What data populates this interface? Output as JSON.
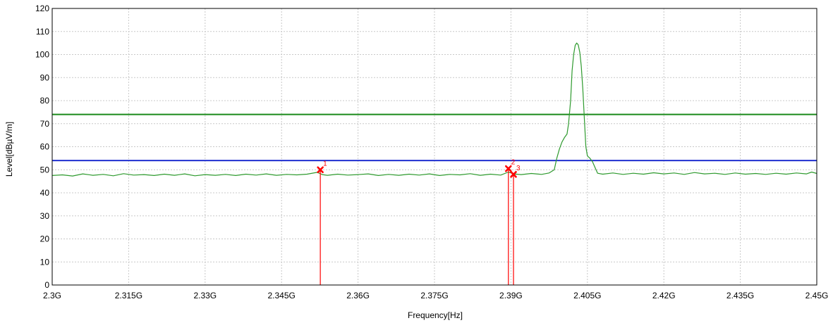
{
  "chart_data": {
    "type": "line",
    "title": "",
    "xlabel": "Frequency[Hz]",
    "ylabel": "Level[dBµV/m]",
    "xlim": [
      2.3,
      2.45
    ],
    "ylim": [
      0,
      120
    ],
    "grid": true,
    "x_ticks": [
      {
        "value": 2.3,
        "label": "2.3G"
      },
      {
        "value": 2.315,
        "label": "2.315G"
      },
      {
        "value": 2.33,
        "label": "2.33G"
      },
      {
        "value": 2.345,
        "label": "2.345G"
      },
      {
        "value": 2.36,
        "label": "2.36G"
      },
      {
        "value": 2.375,
        "label": "2.375G"
      },
      {
        "value": 2.39,
        "label": "2.39G"
      },
      {
        "value": 2.405,
        "label": "2.405G"
      },
      {
        "value": 2.42,
        "label": "2.42G"
      },
      {
        "value": 2.435,
        "label": "2.435G"
      },
      {
        "value": 2.45,
        "label": "2.45G"
      }
    ],
    "y_ticks": [
      {
        "value": 0,
        "label": "0"
      },
      {
        "value": 10,
        "label": "10"
      },
      {
        "value": 20,
        "label": "20"
      },
      {
        "value": 30,
        "label": "30"
      },
      {
        "value": 40,
        "label": "40"
      },
      {
        "value": 50,
        "label": "50"
      },
      {
        "value": 60,
        "label": "60"
      },
      {
        "value": 70,
        "label": "70"
      },
      {
        "value": 80,
        "label": "80"
      },
      {
        "value": 90,
        "label": "90"
      },
      {
        "value": 100,
        "label": "100"
      },
      {
        "value": 110,
        "label": "110"
      },
      {
        "value": 120,
        "label": "120"
      }
    ],
    "limit_lines": [
      {
        "value": 74,
        "color": "#1a8a1a"
      },
      {
        "value": 54,
        "color": "#1f2fd0"
      }
    ],
    "series": [
      {
        "color": "#2e9a2e",
        "points": [
          [
            2.3,
            47.5
          ],
          [
            2.302,
            47.8
          ],
          [
            2.304,
            47.3
          ],
          [
            2.306,
            48.2
          ],
          [
            2.308,
            47.6
          ],
          [
            2.31,
            48.0
          ],
          [
            2.312,
            47.4
          ],
          [
            2.314,
            48.3
          ],
          [
            2.316,
            47.7
          ],
          [
            2.318,
            47.9
          ],
          [
            2.32,
            47.5
          ],
          [
            2.322,
            48.1
          ],
          [
            2.324,
            47.6
          ],
          [
            2.326,
            48.2
          ],
          [
            2.328,
            47.4
          ],
          [
            2.33,
            47.9
          ],
          [
            2.332,
            47.6
          ],
          [
            2.334,
            48.0
          ],
          [
            2.336,
            47.5
          ],
          [
            2.338,
            48.1
          ],
          [
            2.34,
            47.7
          ],
          [
            2.342,
            48.2
          ],
          [
            2.344,
            47.6
          ],
          [
            2.346,
            48.0
          ],
          [
            2.348,
            47.8
          ],
          [
            2.35,
            48.1
          ],
          [
            2.352,
            48.9
          ],
          [
            2.353,
            47.9
          ],
          [
            2.354,
            47.6
          ],
          [
            2.356,
            48.1
          ],
          [
            2.358,
            47.7
          ],
          [
            2.36,
            47.9
          ],
          [
            2.362,
            48.2
          ],
          [
            2.364,
            47.5
          ],
          [
            2.366,
            48.0
          ],
          [
            2.368,
            47.6
          ],
          [
            2.37,
            48.1
          ],
          [
            2.372,
            47.7
          ],
          [
            2.374,
            48.2
          ],
          [
            2.376,
            47.5
          ],
          [
            2.378,
            48.0
          ],
          [
            2.38,
            47.8
          ],
          [
            2.382,
            48.3
          ],
          [
            2.384,
            47.6
          ],
          [
            2.386,
            48.1
          ],
          [
            2.388,
            47.7
          ],
          [
            2.3895,
            49.0
          ],
          [
            2.3905,
            48.2
          ],
          [
            2.392,
            47.9
          ],
          [
            2.394,
            48.4
          ],
          [
            2.396,
            48.0
          ],
          [
            2.3975,
            48.6
          ],
          [
            2.3985,
            50.0
          ],
          [
            2.399,
            55.0
          ],
          [
            2.3995,
            59.0
          ],
          [
            2.4,
            62.0
          ],
          [
            2.4005,
            64.0
          ],
          [
            2.401,
            65.5
          ],
          [
            2.4013,
            70.0
          ],
          [
            2.4017,
            80.0
          ],
          [
            2.402,
            93.0
          ],
          [
            2.4023,
            100.0
          ],
          [
            2.4026,
            104.0
          ],
          [
            2.4029,
            105.0
          ],
          [
            2.4032,
            104.2
          ],
          [
            2.4035,
            101.0
          ],
          [
            2.4038,
            95.0
          ],
          [
            2.4041,
            85.0
          ],
          [
            2.4044,
            72.0
          ],
          [
            2.4047,
            60.0
          ],
          [
            2.405,
            56.0
          ],
          [
            2.4055,
            55.0
          ],
          [
            2.406,
            53.5
          ],
          [
            2.4065,
            51.0
          ],
          [
            2.407,
            48.5
          ],
          [
            2.408,
            48.1
          ],
          [
            2.41,
            48.6
          ],
          [
            2.412,
            48.0
          ],
          [
            2.414,
            48.5
          ],
          [
            2.416,
            48.1
          ],
          [
            2.418,
            48.7
          ],
          [
            2.42,
            48.2
          ],
          [
            2.422,
            48.6
          ],
          [
            2.424,
            48.0
          ],
          [
            2.426,
            48.8
          ],
          [
            2.428,
            48.2
          ],
          [
            2.43,
            48.5
          ],
          [
            2.432,
            48.0
          ],
          [
            2.434,
            48.6
          ],
          [
            2.436,
            48.1
          ],
          [
            2.438,
            48.4
          ],
          [
            2.44,
            48.0
          ],
          [
            2.442,
            48.5
          ],
          [
            2.444,
            48.1
          ],
          [
            2.446,
            48.6
          ],
          [
            2.448,
            48.2
          ],
          [
            2.449,
            49.0
          ],
          [
            2.45,
            48.4
          ]
        ]
      }
    ],
    "markers": [
      {
        "label": "1",
        "x": 2.3526,
        "y": 50.0
      },
      {
        "label": "2",
        "x": 2.3895,
        "y": 50.5
      },
      {
        "label": "3",
        "x": 2.3905,
        "y": 48.0
      }
    ],
    "marker_color": "#ff0000",
    "grid_color": "#c8c8c8"
  }
}
